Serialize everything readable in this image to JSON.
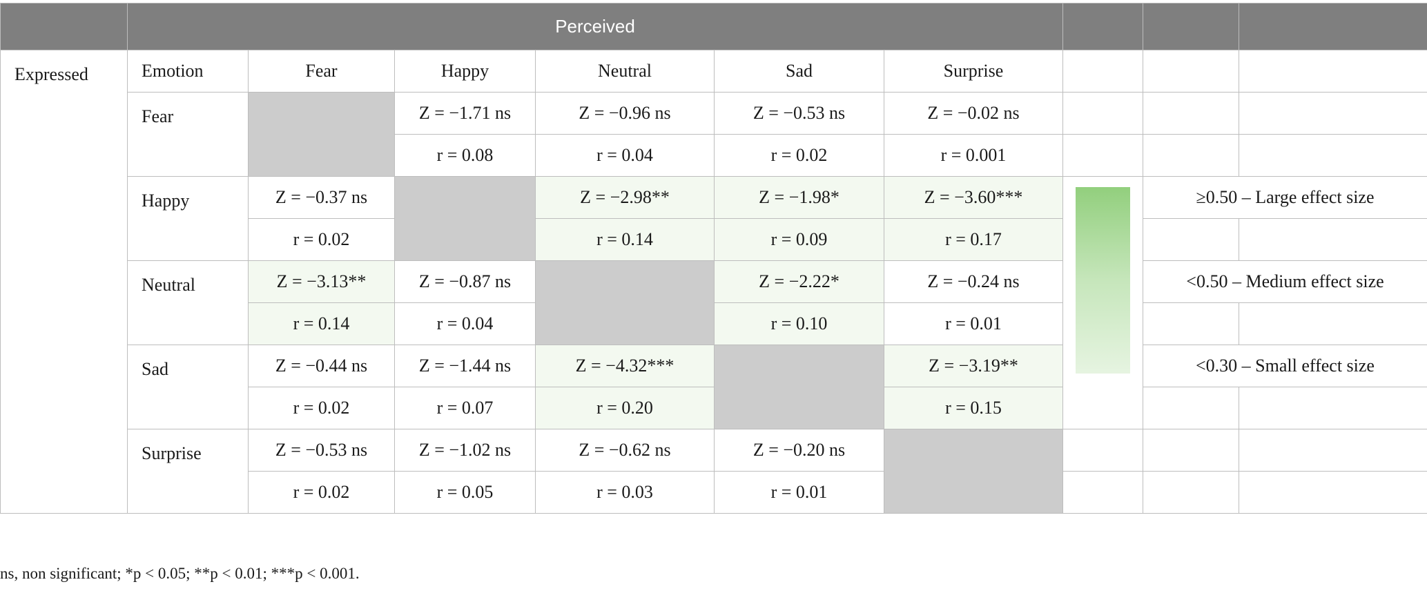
{
  "header": {
    "title": "Perceived"
  },
  "row_header_label": "Expressed",
  "emotion_col_label": "Emotion",
  "columns": [
    "Fear",
    "Happy",
    "Neutral",
    "Sad",
    "Surprise"
  ],
  "rows": [
    {
      "emotion": "Fear",
      "z": [
        "",
        "Z = −1.71 ns",
        "Z = −0.96 ns",
        "Z = −0.53 ns",
        "Z = −0.02 ns"
      ],
      "r": [
        "",
        "r = 0.08",
        "r = 0.04",
        "r = 0.02",
        "r = 0.001"
      ]
    },
    {
      "emotion": "Happy",
      "z": [
        "Z = −0.37 ns",
        "",
        "Z = −2.98**",
        "Z = −1.98*",
        "Z = −3.60***"
      ],
      "r": [
        "r = 0.02",
        "",
        "r = 0.14",
        "r = 0.09",
        "r = 0.17"
      ]
    },
    {
      "emotion": "Neutral",
      "z": [
        "Z = −3.13**",
        "Z = −0.87 ns",
        "",
        "Z = −2.22*",
        "Z = −0.24 ns"
      ],
      "r": [
        "r = 0.14",
        "r = 0.04",
        "",
        "r = 0.10",
        "r = 0.01"
      ]
    },
    {
      "emotion": "Sad",
      "z": [
        "Z = −0.44 ns",
        "Z = −1.44 ns",
        "Z = −4.32***",
        "",
        "Z = −3.19**"
      ],
      "r": [
        "r = 0.02",
        "r = 0.07",
        "r = 0.20",
        "",
        "r = 0.15"
      ]
    },
    {
      "emotion": "Surprise",
      "z": [
        "Z = −0.53 ns",
        "Z = −1.02 ns",
        "Z = −0.62 ns",
        "Z = −0.20 ns",
        ""
      ],
      "r": [
        "r = 0.02",
        "r = 0.05",
        "r = 0.03",
        "r = 0.01",
        ""
      ]
    }
  ],
  "legend": {
    "large": "≥0.50 – Large effect size",
    "medium": "<0.50 – Medium effect size",
    "small": "<0.30 – Small effect size"
  },
  "colors": {
    "header_bg": "#7f7f7f",
    "diagonal": "#cccccc",
    "highlight": "#f3f9f0",
    "gradient_top": "#92cf7d",
    "gradient_bottom": "#e6f4e1"
  },
  "footnote": "ns, non significant; *p < 0.05; **p < 0.01; ***p < 0.001."
}
